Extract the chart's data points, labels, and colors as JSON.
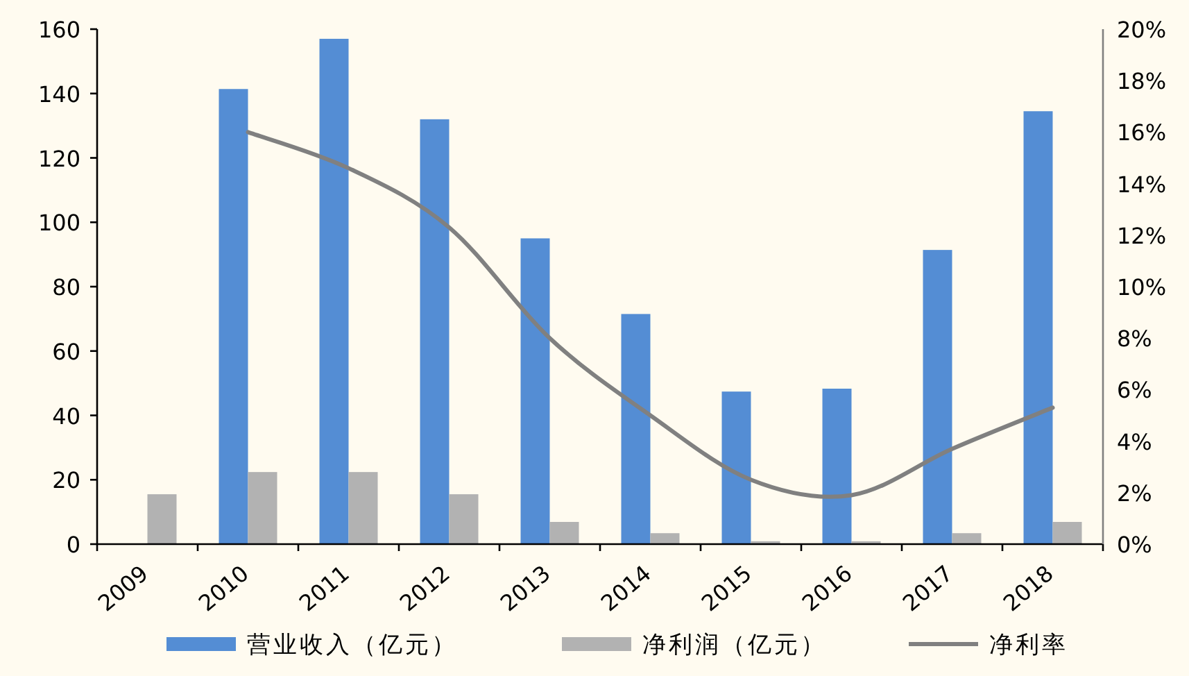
{
  "chart_data": {
    "type": "bar",
    "categories": [
      "2009",
      "2010",
      "2011",
      "2012",
      "2013",
      "2014",
      "2015",
      "2016",
      "2017",
      "2018"
    ],
    "series": [
      {
        "name": "营业收入（亿元）",
        "color": "#548dd4",
        "values": [
          null,
          141.4,
          157,
          132,
          95,
          71.5,
          47.4,
          48.3,
          91.4,
          134.5
        ]
      },
      {
        "name": "净利润（亿元）",
        "color": "#b2b2b2",
        "values": [
          15.5,
          22.4,
          22.4,
          15.5,
          6.9,
          3.4,
          0.9,
          0.9,
          3.4,
          6.9
        ]
      },
      {
        "name": "净利率",
        "color": "#808080",
        "type": "line",
        "axis": "y2",
        "values": [
          null,
          16.0,
          14.6,
          12.3,
          8.0,
          5.0,
          2.5,
          1.9,
          3.7,
          5.3
        ]
      }
    ],
    "ylim": [
      0,
      160
    ],
    "yticks": [
      0,
      20,
      40,
      60,
      80,
      100,
      120,
      140,
      160
    ],
    "y2lim": [
      0,
      20
    ],
    "y2ticks": [
      {
        "value": 0,
        "label": "0%"
      },
      {
        "value": 2,
        "label": "2%"
      },
      {
        "value": 4,
        "label": "4%"
      },
      {
        "value": 6,
        "label": "6%"
      },
      {
        "value": 8,
        "label": "8%"
      },
      {
        "value": 10,
        "label": "10%"
      },
      {
        "value": 12,
        "label": "12%"
      },
      {
        "value": 14,
        "label": "14%"
      },
      {
        "value": 16,
        "label": "16%"
      },
      {
        "value": 18,
        "label": "18%"
      },
      {
        "value": 20,
        "label": "20%"
      }
    ],
    "legend": "bottom",
    "marker": "none",
    "grid": false
  }
}
